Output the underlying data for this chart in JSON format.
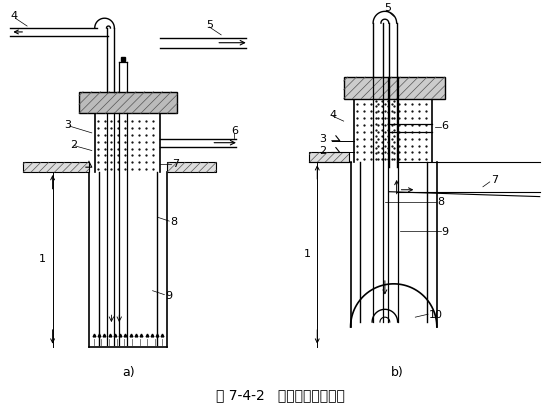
{
  "title": "图 7-4-2   吸泥机清孔示意图",
  "label_a": "a)",
  "label_b": "b)",
  "bg_color": "#ffffff",
  "line_color": "#000000",
  "font_size_title": 10,
  "font_size_label": 9,
  "font_size_num": 8
}
